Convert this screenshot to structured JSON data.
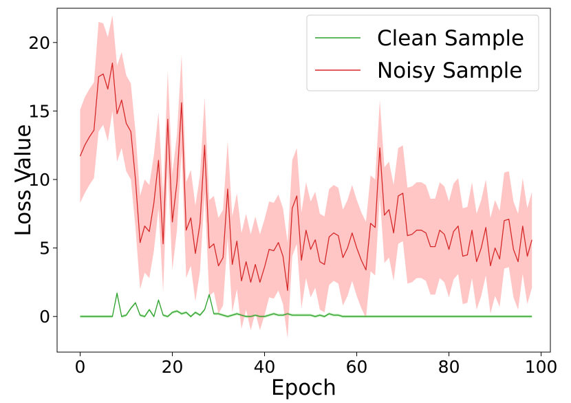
{
  "chart_data": {
    "type": "line",
    "xlabel": "Epoch",
    "ylabel": "Loss Value",
    "xlim": [
      -5,
      102
    ],
    "ylim": [
      -2.6,
      22.5
    ],
    "xticks": [
      0,
      20,
      40,
      60,
      80,
      100
    ],
    "yticks": [
      0,
      5,
      10,
      15,
      20
    ],
    "legend_position": "top-right",
    "grid": false,
    "x_start": 0,
    "x_step": 1,
    "series": [
      {
        "name": "Clean Sample",
        "color": "#2ca02c",
        "band_color": "#98df8a",
        "values": [
          0.0,
          0.0,
          0.0,
          0.0,
          0.0,
          0.0,
          0.0,
          0.0,
          1.7,
          0.0,
          0.1,
          0.6,
          1.0,
          0.1,
          0.0,
          0.5,
          0.0,
          1.2,
          0.1,
          0.0,
          0.3,
          0.4,
          0.2,
          0.3,
          0.0,
          0.3,
          0.1,
          0.5,
          1.6,
          0.2,
          0.2,
          0.1,
          0.0,
          0.1,
          0.2,
          0.1,
          0.0,
          0.0,
          0.1,
          0.0,
          0.0,
          0.1,
          0.2,
          0.1,
          0.1,
          0.2,
          0.1,
          0.1,
          0.1,
          0.1,
          0.1,
          0.0,
          0.1,
          0.0,
          0.2,
          0.1,
          0.1,
          0.0,
          0.0,
          0.0,
          0.0,
          0.0,
          0.0,
          0.0,
          0.0,
          0.0,
          0.0,
          0.0,
          0.0,
          0.0,
          0.0,
          0.0,
          0.0,
          0.0,
          0.0,
          0.0,
          0.0,
          0.0,
          0.0,
          0.0,
          0.0,
          0.0,
          0.0,
          0.0,
          0.0,
          0.0,
          0.0,
          0.0,
          0.0,
          0.0,
          0.0,
          0.0,
          0.0,
          0.0,
          0.0,
          0.0,
          0.0,
          0.0,
          0.0
        ],
        "lower": [
          -0.1,
          -0.1,
          -0.1,
          -0.1,
          -0.1,
          -0.1,
          -0.1,
          -0.1,
          1.5,
          -0.1,
          0.0,
          0.5,
          0.9,
          0.0,
          -0.1,
          0.4,
          -0.1,
          1.1,
          0.0,
          -0.1,
          0.2,
          0.3,
          0.1,
          0.2,
          -0.1,
          0.2,
          0.0,
          0.4,
          1.5,
          0.1,
          0.1,
          0.0,
          -0.1,
          0.0,
          0.1,
          0.0,
          -0.1,
          -0.1,
          0.0,
          -0.1,
          -0.1,
          0.0,
          0.1,
          0.0,
          0.0,
          0.1,
          0.0,
          0.0,
          0.0,
          0.0,
          0.0,
          -0.1,
          0.0,
          -0.1,
          0.1,
          0.0,
          0.0,
          -0.1,
          -0.1,
          -0.1,
          -0.1,
          -0.1,
          -0.1,
          -0.1,
          -0.1,
          -0.1,
          -0.1,
          -0.1,
          -0.1,
          -0.1,
          -0.1,
          -0.1,
          -0.1,
          -0.1,
          -0.1,
          -0.1,
          -0.1,
          -0.1,
          -0.1,
          -0.1,
          -0.1,
          -0.1,
          -0.1,
          -0.1,
          -0.1,
          -0.1,
          -0.1,
          -0.1,
          -0.1,
          -0.1,
          -0.1,
          -0.1,
          -0.1,
          -0.1,
          -0.1,
          -0.1,
          -0.1,
          -0.1,
          -0.1
        ],
        "upper": [
          0.1,
          0.1,
          0.1,
          0.1,
          0.1,
          0.1,
          0.1,
          0.1,
          1.9,
          0.1,
          0.2,
          0.7,
          1.1,
          0.2,
          0.1,
          0.6,
          0.1,
          1.3,
          0.2,
          0.1,
          0.4,
          0.5,
          0.3,
          0.4,
          0.1,
          0.4,
          0.2,
          0.6,
          1.7,
          0.3,
          0.3,
          0.2,
          0.1,
          0.2,
          0.3,
          0.2,
          0.1,
          0.1,
          0.2,
          0.1,
          0.1,
          0.2,
          0.3,
          0.2,
          0.2,
          0.3,
          0.2,
          0.2,
          0.2,
          0.2,
          0.2,
          0.1,
          0.2,
          0.1,
          0.3,
          0.2,
          0.2,
          0.1,
          0.1,
          0.1,
          0.1,
          0.1,
          0.1,
          0.1,
          0.1,
          0.1,
          0.1,
          0.1,
          0.1,
          0.1,
          0.1,
          0.1,
          0.1,
          0.1,
          0.1,
          0.1,
          0.1,
          0.1,
          0.1,
          0.1,
          0.1,
          0.1,
          0.1,
          0.1,
          0.1,
          0.1,
          0.1,
          0.1,
          0.1,
          0.1,
          0.1,
          0.1,
          0.1,
          0.1,
          0.1,
          0.1,
          0.1,
          0.1,
          0.1
        ]
      },
      {
        "name": "Noisy Sample",
        "color": "#d62728",
        "band_color": "#ff9896",
        "values": [
          11.7,
          12.5,
          13.1,
          13.6,
          17.5,
          17.7,
          16.6,
          18.5,
          14.8,
          15.8,
          14.1,
          13.5,
          10.0,
          5.4,
          6.6,
          6.2,
          8.3,
          11.4,
          5.3,
          14.4,
          6.9,
          9.8,
          15.6,
          6.3,
          7.2,
          4.6,
          6.8,
          12.5,
          5.0,
          5.3,
          3.7,
          4.3,
          9.3,
          3.8,
          5.5,
          2.6,
          4.0,
          2.5,
          3.8,
          2.5,
          3.6,
          4.9,
          4.8,
          5.4,
          4.4,
          1.9,
          7.9,
          8.8,
          4.1,
          6.3,
          4.9,
          5.6,
          4.0,
          3.8,
          5.8,
          6.1,
          5.9,
          4.3,
          5.0,
          6.1,
          5.0,
          4.1,
          3.4,
          6.8,
          6.5,
          12.3,
          7.4,
          7.8,
          6.1,
          8.8,
          9.0,
          5.9,
          6.0,
          6.3,
          6.3,
          6.1,
          5.1,
          5.1,
          6.3,
          6.0,
          4.9,
          6.2,
          6.6,
          4.4,
          4.5,
          6.3,
          4.0,
          5.0,
          6.5,
          3.7,
          5.0,
          4.2,
          7.0,
          7.1,
          4.9,
          4.0,
          6.6,
          4.4,
          5.6
        ],
        "lower": [
          8.3,
          9.0,
          9.6,
          10.1,
          13.5,
          14.0,
          12.8,
          15.0,
          11.3,
          12.3,
          10.6,
          10.0,
          6.5,
          2.0,
          3.2,
          2.8,
          4.8,
          7.9,
          1.8,
          10.9,
          3.4,
          6.3,
          12.1,
          2.8,
          3.7,
          1.1,
          3.3,
          9.0,
          1.5,
          1.8,
          0.2,
          0.8,
          5.8,
          0.3,
          2.0,
          -0.9,
          0.5,
          -1.0,
          0.3,
          -1.0,
          0.1,
          1.4,
          1.3,
          1.9,
          0.9,
          -1.6,
          4.4,
          5.3,
          0.6,
          2.8,
          1.4,
          2.1,
          0.5,
          0.3,
          2.3,
          2.6,
          2.4,
          0.8,
          1.5,
          2.6,
          1.5,
          0.6,
          -0.1,
          3.3,
          3.0,
          8.8,
          3.9,
          4.3,
          2.6,
          5.3,
          5.5,
          2.4,
          2.5,
          2.8,
          2.8,
          2.6,
          1.6,
          1.6,
          2.8,
          2.5,
          1.4,
          2.7,
          3.1,
          0.9,
          1.0,
          2.8,
          0.5,
          1.5,
          3.0,
          0.2,
          1.5,
          0.7,
          3.5,
          3.6,
          1.4,
          0.5,
          3.1,
          0.9,
          2.1
        ],
        "upper": [
          15.1,
          16.0,
          16.6,
          17.1,
          21.5,
          21.4,
          20.4,
          22.0,
          18.3,
          19.3,
          17.6,
          17.0,
          13.5,
          8.8,
          10.0,
          9.6,
          11.8,
          14.9,
          8.8,
          17.9,
          10.4,
          13.3,
          19.1,
          9.8,
          10.7,
          8.1,
          10.3,
          16.0,
          8.5,
          8.8,
          7.2,
          7.8,
          12.8,
          7.3,
          9.0,
          6.1,
          7.5,
          6.0,
          7.3,
          6.0,
          7.1,
          8.4,
          8.3,
          8.9,
          7.9,
          5.4,
          11.4,
          12.3,
          7.6,
          9.8,
          8.4,
          9.1,
          7.5,
          7.3,
          9.3,
          9.6,
          9.4,
          7.8,
          8.5,
          9.6,
          8.5,
          7.6,
          6.9,
          10.3,
          10.0,
          15.8,
          10.9,
          11.3,
          9.6,
          12.3,
          12.5,
          9.4,
          9.5,
          9.8,
          9.8,
          9.6,
          8.6,
          8.6,
          9.8,
          9.5,
          8.4,
          9.7,
          10.1,
          7.9,
          8.0,
          9.8,
          7.5,
          8.5,
          10.0,
          7.2,
          8.5,
          7.7,
          10.5,
          10.6,
          8.4,
          7.5,
          10.1,
          7.9,
          9.1
        ]
      }
    ]
  }
}
